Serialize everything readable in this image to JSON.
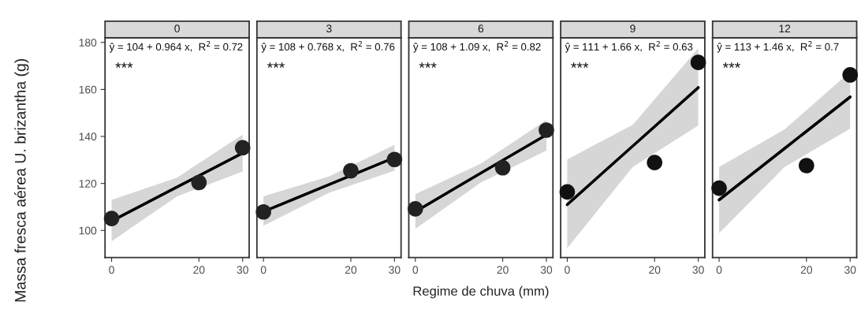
{
  "chart_data": [
    {
      "type": "scatter",
      "title": "0",
      "ylabel": "Massa fresca aérea U. brizantha (g)",
      "annotations": [
        "ŷ = 104 + 0.964 x,  R$^{2}$ = 0.72",
        "***"
      ],
      "xlim": [
        -1.5,
        31.5
      ],
      "ylim": [
        88.5,
        182
      ],
      "xticks": [
        0,
        20,
        30
      ],
      "yticks": [
        100,
        120,
        140,
        160,
        180
      ],
      "grid": false,
      "series": [
        {
          "x": [
            0,
            20,
            30
          ],
          "values": [
            105.1,
            120.4,
            135.2
          ],
          "color": "#222222",
          "marker": "circle"
        },
        {
          "type": "line",
          "x": [
            0,
            15,
            30
          ],
          "values": [
            104,
            118.5,
            132.9
          ],
          "lower": [
            95.4,
            114.5,
            125.1
          ],
          "upper": [
            113,
            122.5,
            140.8
          ],
          "color": "#000000",
          "marker": "none"
        }
      ]
    },
    {
      "type": "scatter",
      "title": "3",
      "annotations": [
        "ŷ = 108 + 0.768 x,  R$^{2}$ = 0.76",
        "***"
      ],
      "xlim": [
        -1.5,
        31.5
      ],
      "ylim": [
        88.5,
        182
      ],
      "xticks": [
        0,
        20,
        30
      ],
      "yticks": [
        100,
        120,
        140,
        160,
        180
      ],
      "tick_labels": "x",
      "grid": false,
      "series": [
        {
          "x": [
            0,
            20,
            30
          ],
          "values": [
            107.9,
            125.4,
            130.2
          ],
          "color": "#222222",
          "marker": "circle"
        },
        {
          "type": "line",
          "x": [
            0,
            15,
            30
          ],
          "values": [
            108,
            119.5,
            131
          ],
          "lower": [
            102,
            116,
            125.4
          ],
          "upper": [
            114.5,
            123,
            136.4
          ],
          "color": "#000000",
          "marker": "none"
        }
      ]
    },
    {
      "type": "scatter",
      "title": "6",
      "xlabel": "Regime de chuva (mm)",
      "annotations": [
        "ŷ = 108 + 1.09 x,  R$^{2}$ = 0.82",
        "***"
      ],
      "xlim": [
        -1.5,
        31.5
      ],
      "ylim": [
        88.5,
        182
      ],
      "xticks": [
        0,
        20,
        30
      ],
      "yticks": [
        100,
        120,
        140,
        160,
        180
      ],
      "tick_labels": "x",
      "grid": false,
      "series": [
        {
          "x": [
            0,
            20,
            30
          ],
          "values": [
            109.2,
            126.7,
            142.7
          ],
          "color": "#222222",
          "marker": "circle"
        },
        {
          "type": "line",
          "x": [
            0,
            15,
            30
          ],
          "values": [
            108,
            124.4,
            140.7
          ],
          "lower": [
            100.7,
            120.4,
            134
          ],
          "upper": [
            115.4,
            128.4,
            147
          ],
          "color": "#000000",
          "marker": "none"
        }
      ]
    },
    {
      "type": "scatter",
      "title": "9",
      "annotations": [
        "ŷ = 111 + 1.66 x,  R$^{2}$ = 0.63",
        "***"
      ],
      "xlim": [
        -1.5,
        31.5
      ],
      "ylim": [
        88.5,
        182
      ],
      "xticks": [
        0,
        20,
        30
      ],
      "yticks": [
        100,
        120,
        140,
        160,
        180
      ],
      "tick_labels": "x",
      "grid": false,
      "series": [
        {
          "x": [
            0,
            20,
            30
          ],
          "values": [
            116.4,
            128.9,
            171.5
          ],
          "color": "#111111",
          "marker": "circle"
        },
        {
          "type": "line",
          "x": [
            0,
            15,
            30
          ],
          "values": [
            111,
            135.9,
            160.8
          ],
          "lower": [
            92.5,
            127,
            144.6
          ],
          "upper": [
            130.2,
            145,
            177.5
          ],
          "color": "#000000",
          "marker": "none"
        }
      ]
    },
    {
      "type": "scatter",
      "title": "12",
      "annotations": [
        "ŷ = 113 + 1.46 x,  R$^{2}$ = 0.7",
        "***"
      ],
      "xlim": [
        -1.5,
        31.5
      ],
      "ylim": [
        88.5,
        182
      ],
      "xticks": [
        0,
        20,
        30
      ],
      "yticks": [
        100,
        120,
        140,
        160,
        180
      ],
      "tick_labels": "x",
      "grid": false,
      "series": [
        {
          "x": [
            0,
            20,
            30
          ],
          "values": [
            118,
            127.6,
            166.2
          ],
          "color": "#111111",
          "marker": "circle"
        },
        {
          "type": "line",
          "x": [
            0,
            15,
            30
          ],
          "values": [
            113,
            134.9,
            156.8
          ],
          "lower": [
            98.8,
            127,
            143.3
          ],
          "upper": [
            127,
            143,
            167.5
          ],
          "color": "#000000",
          "marker": "none"
        }
      ]
    }
  ]
}
